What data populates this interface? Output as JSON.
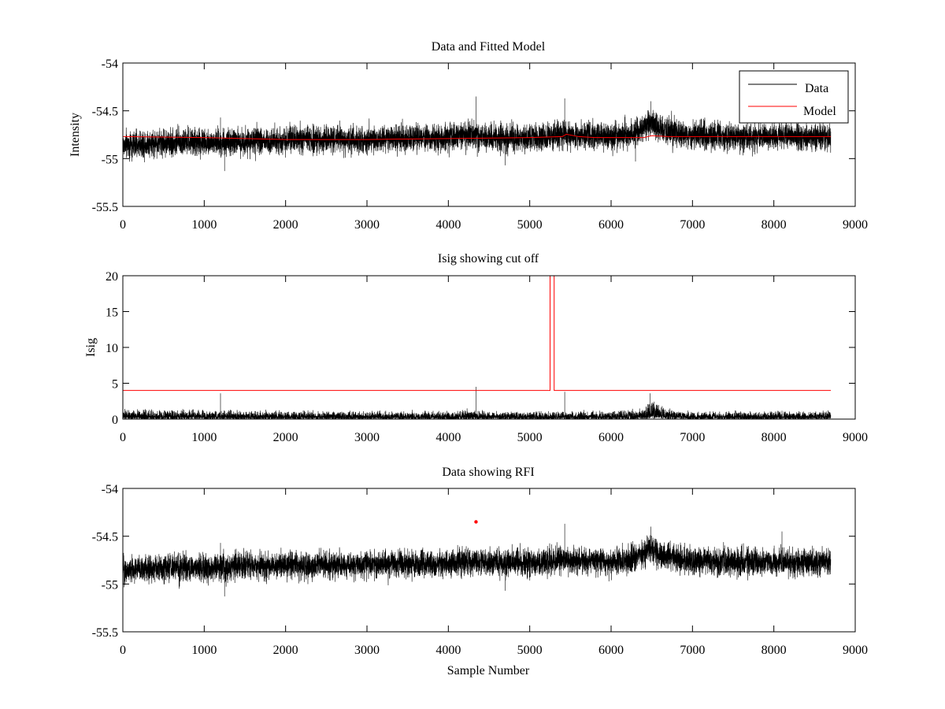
{
  "chart_data": [
    {
      "type": "line",
      "title": "Data and Fitted Model",
      "xlabel": "",
      "ylabel": "Intensity",
      "xlim": [
        0,
        9000
      ],
      "ylim": [
        -55.5,
        -54
      ],
      "x_ticks": [
        "0",
        "1000",
        "2000",
        "3000",
        "4000",
        "5000",
        "6000",
        "7000",
        "8000",
        "9000"
      ],
      "y_ticks": [
        "-54",
        "-54.5",
        "-55",
        "-55.5"
      ],
      "legend": {
        "placement": "top-right",
        "entries": [
          "Data",
          "Model"
        ]
      },
      "series": [
        {
          "name": "Data",
          "color": "#000000",
          "n_samples": 8700,
          "x": [
            0,
            500,
            1000,
            1500,
            2000,
            2500,
            3000,
            3500,
            4000,
            4300,
            4500,
            5000,
            5400,
            6000,
            6300,
            6500,
            6600,
            7000,
            7500,
            8000,
            8500,
            8700
          ],
          "mean": [
            -54.86,
            -54.83,
            -54.83,
            -54.82,
            -54.81,
            -54.8,
            -54.8,
            -54.79,
            -54.78,
            -54.76,
            -54.78,
            -54.78,
            -54.75,
            -54.77,
            -54.73,
            -54.62,
            -54.7,
            -54.76,
            -54.77,
            -54.77,
            -54.77,
            -54.77
          ],
          "spread": 0.1,
          "spikes": [
            {
              "x": 1200,
              "y": -54.57
            },
            {
              "x": 1250,
              "y": -55.13
            },
            {
              "x": 4340,
              "y": -54.35
            },
            {
              "x": 4700,
              "y": -55.07
            },
            {
              "x": 5430,
              "y": -54.37
            },
            {
              "x": 6490,
              "y": -54.4
            },
            {
              "x": 6300,
              "y": -55.03
            }
          ]
        },
        {
          "name": "Model",
          "color": "#ff0000",
          "x": [
            0,
            1000,
            2000,
            3000,
            4000,
            5000,
            5400,
            5450,
            5600,
            5800,
            6400,
            6500,
            6700,
            7000,
            8000,
            8700
          ],
          "y": [
            -54.77,
            -54.78,
            -54.8,
            -54.8,
            -54.79,
            -54.78,
            -54.77,
            -54.745,
            -54.77,
            -54.78,
            -54.78,
            -54.76,
            -54.77,
            -54.77,
            -54.77,
            -54.77
          ]
        }
      ]
    },
    {
      "type": "line",
      "title": "Isig showing cut off",
      "xlabel": "",
      "ylabel": "Isig",
      "xlim": [
        0,
        9000
      ],
      "ylim": [
        0,
        20
      ],
      "x_ticks": [
        "0",
        "1000",
        "2000",
        "3000",
        "4000",
        "5000",
        "6000",
        "7000",
        "8000",
        "9000"
      ],
      "y_ticks": [
        "20",
        "15",
        "10",
        "5",
        "0"
      ],
      "series": [
        {
          "name": "Isig",
          "color": "#000000",
          "n_samples": 8700,
          "x": [
            0,
            1000,
            2000,
            3000,
            4000,
            4300,
            4500,
            5000,
            6000,
            6400,
            6500,
            6600,
            7000,
            8000,
            8700
          ],
          "mean": [
            0.9,
            0.8,
            0.75,
            0.7,
            0.7,
            0.9,
            0.7,
            0.7,
            0.7,
            1.0,
            2.0,
            1.1,
            0.7,
            0.7,
            0.7
          ],
          "spread": 1.0,
          "spikes": [
            {
              "x": 4340,
              "y": 4.5
            },
            {
              "x": 1200,
              "y": 3.6
            },
            {
              "x": 6480,
              "y": 3.6
            },
            {
              "x": 5430,
              "y": 3.8
            }
          ]
        },
        {
          "name": "Cut off",
          "color": "#ff0000",
          "x": [
            0,
            5250,
            5250,
            5300,
            5300,
            8700
          ],
          "y": [
            4,
            4,
            20,
            20,
            4,
            4
          ]
        }
      ]
    },
    {
      "type": "line",
      "title": "Data showing RFI",
      "xlabel": "Sample Number",
      "ylabel": "",
      "xlim": [
        0,
        9000
      ],
      "ylim": [
        -55.5,
        -54
      ],
      "x_ticks": [
        "0",
        "1000",
        "2000",
        "3000",
        "4000",
        "5000",
        "6000",
        "7000",
        "8000",
        "9000"
      ],
      "y_ticks": [
        "-54",
        "-54.5",
        "-55",
        "-55.5"
      ],
      "series": [
        {
          "name": "Data",
          "color": "#000000",
          "n_samples": 8700,
          "x": [
            0,
            500,
            1000,
            1500,
            2000,
            2500,
            3000,
            3500,
            4000,
            4300,
            4500,
            5000,
            5400,
            6000,
            6300,
            6500,
            6600,
            7000,
            7500,
            8000,
            8500,
            8700
          ],
          "mean": [
            -54.86,
            -54.83,
            -54.83,
            -54.82,
            -54.81,
            -54.8,
            -54.8,
            -54.79,
            -54.78,
            -54.76,
            -54.78,
            -54.78,
            -54.75,
            -54.77,
            -54.73,
            -54.62,
            -54.7,
            -54.76,
            -54.77,
            -54.77,
            -54.77,
            -54.77
          ],
          "spread": 0.1,
          "spikes": [
            {
              "x": 1200,
              "y": -54.57
            },
            {
              "x": 1250,
              "y": -55.13
            },
            {
              "x": 4700,
              "y": -55.07
            },
            {
              "x": 5430,
              "y": -54.37
            },
            {
              "x": 6490,
              "y": -54.4
            },
            {
              "x": 8100,
              "y": -54.45
            }
          ]
        },
        {
          "name": "RFI",
          "color": "#ff0000",
          "points": [
            {
              "x": 4340,
              "y": -54.35
            }
          ]
        }
      ]
    }
  ]
}
